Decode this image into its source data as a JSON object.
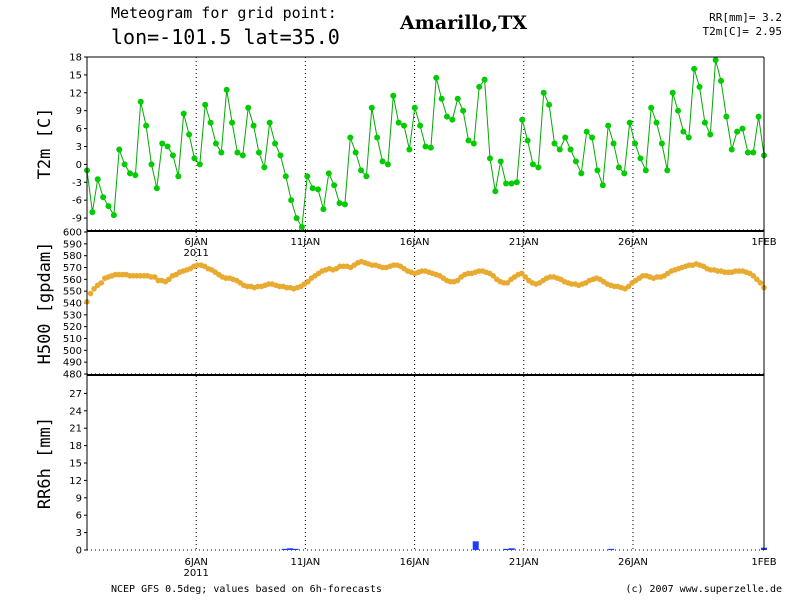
{
  "header": {
    "title": "Meteogram for grid point:",
    "coords": "lon=-101.5 lat=35.0",
    "location": "Amarillo,TX",
    "rr_summary": "RR[mm]= 3.2",
    "t2m_summary": "T2m[C]= 2.95"
  },
  "footer": {
    "source": "NCEP GFS 0.5deg; values based on 6h-forecasts",
    "copyright": "(c) 2007 www.superzelle.de"
  },
  "colors": {
    "t2m": "#00cc00",
    "t2m_line": "#00aa00",
    "h500": "#e8aa30",
    "rr": "#1f3dff",
    "grid": "#000000"
  },
  "chart_data": [
    {
      "type": "line",
      "ylabel": "T2m [C]",
      "ylim": [
        -11,
        18
      ],
      "yticks": [
        -9,
        -6,
        -3,
        0,
        3,
        6,
        9,
        12,
        15,
        18
      ],
      "x_start": "2011-01-01",
      "x_end": "2011-02-01",
      "step_hours": 6,
      "x_ticks": [
        {
          "label": "6JAN",
          "sub": "2011",
          "day": 6
        },
        {
          "label": "11JAN",
          "sub": "",
          "day": 11
        },
        {
          "label": "16JAN",
          "sub": "",
          "day": 16
        },
        {
          "label": "21JAN",
          "sub": "",
          "day": 21
        },
        {
          "label": "26JAN",
          "sub": "",
          "day": 26
        },
        {
          "label": "1FEB",
          "sub": "",
          "day": 32
        }
      ],
      "grid": "vertical dotted",
      "series": [
        {
          "values": [
            -1.0,
            -8.0,
            -2.5,
            -5.5,
            -7.0,
            -8.5,
            2.5,
            0.0,
            -1.5,
            -1.8,
            10.5,
            6.5,
            0.0,
            -4.0,
            3.5,
            3.0,
            1.5,
            -2.0,
            8.5,
            5.0,
            1.0,
            0.0,
            10.0,
            7.0,
            3.5,
            2.0,
            12.5,
            7.0,
            2.0,
            1.5,
            9.5,
            6.5,
            2.0,
            -0.5,
            7.0,
            3.5,
            1.5,
            -2.0,
            -6.0,
            -9.0,
            -10.5,
            -2.0,
            -4.0,
            -4.2,
            -7.5,
            -1.5,
            -3.5,
            -6.5,
            -6.7,
            4.5,
            2.0,
            -1.0,
            -2.0,
            9.5,
            4.5,
            0.5,
            0.0,
            11.5,
            7.0,
            6.5,
            2.5,
            9.5,
            6.5,
            3.0,
            2.8,
            14.5,
            11.0,
            8.0,
            7.5,
            11.0,
            9.0,
            4.0,
            3.5,
            13.0,
            14.2,
            1.0,
            -4.5,
            0.5,
            -3.2,
            -3.2,
            -3.0,
            7.5,
            4.0,
            0.0,
            -0.5,
            12.0,
            10.0,
            3.5,
            2.5,
            4.5,
            2.5,
            0.5,
            -1.5,
            5.5,
            4.5,
            -1.0,
            -3.5,
            6.5,
            3.5,
            -0.5,
            -1.5,
            7.0,
            3.5,
            1.0,
            -1.0,
            9.5,
            7.0,
            3.5,
            -1.0,
            12.0,
            9.0,
            5.5,
            4.5,
            16.0,
            13.0,
            7.0,
            5.0,
            17.5,
            14.0,
            8.0,
            2.5,
            5.5,
            6.0,
            2.0,
            2.0,
            8.0,
            1.5
          ]
        }
      ]
    },
    {
      "type": "line",
      "ylabel": "H500 [gpdam]",
      "ylim": [
        480,
        600
      ],
      "yticks": [
        480,
        490,
        500,
        510,
        520,
        530,
        540,
        550,
        560,
        570,
        580,
        590,
        600
      ],
      "grid": "vertical dotted",
      "series": [
        {
          "values": [
            541,
            548,
            552,
            555,
            557,
            561,
            562,
            563,
            564,
            564,
            564,
            564,
            563,
            563,
            563,
            563,
            563,
            563,
            562,
            562,
            559,
            559,
            558,
            560,
            563,
            564,
            566,
            567,
            568,
            569,
            571,
            572,
            572,
            571,
            569,
            568,
            566,
            564,
            562,
            561,
            561,
            560,
            559,
            557,
            555,
            554,
            554,
            553,
            554,
            554,
            555,
            556,
            556,
            555,
            554,
            554,
            553,
            553,
            552,
            553,
            554,
            556,
            558,
            561,
            563,
            565,
            567,
            568,
            569,
            568,
            569,
            571,
            571,
            571,
            570,
            572,
            574,
            575,
            574,
            573,
            572,
            572,
            571,
            570,
            570,
            571,
            572,
            572,
            571,
            569,
            567,
            566,
            565,
            566,
            567,
            567,
            566,
            565,
            564,
            563,
            561,
            559,
            558,
            558,
            559,
            562,
            564,
            565,
            565,
            566,
            567,
            567,
            566,
            565,
            563,
            560,
            558,
            557,
            557,
            560,
            562,
            564,
            565,
            562,
            559,
            557,
            556,
            557,
            559,
            561,
            562,
            562,
            561,
            560,
            558,
            557,
            556,
            556,
            555,
            556,
            557,
            559,
            560,
            561,
            560,
            558,
            556,
            555,
            554,
            554,
            553,
            552,
            554,
            557,
            559,
            561,
            563,
            563,
            562,
            561,
            562,
            562,
            563,
            565,
            567,
            568,
            569,
            570,
            571,
            572,
            572,
            573,
            572,
            571,
            569,
            568,
            568,
            567,
            567,
            566,
            566,
            566,
            567,
            567,
            567,
            566,
            565,
            563,
            560,
            557,
            553
          ]
        }
      ]
    },
    {
      "type": "bar",
      "ylabel": "RR6h [mm]",
      "ylim": [
        0,
        30
      ],
      "yticks": [
        0,
        3,
        6,
        9,
        12,
        15,
        18,
        21,
        24,
        27
      ],
      "grid": "vertical dotted",
      "bars": [
        {
          "day": 10.05,
          "value": 0.2
        },
        {
          "day": 10.3,
          "value": 0.3
        },
        {
          "day": 10.55,
          "value": 0.2
        },
        {
          "day": 18.8,
          "value": 1.5
        },
        {
          "day": 20.2,
          "value": 0.2
        },
        {
          "day": 20.45,
          "value": 0.3
        },
        {
          "day": 25.0,
          "value": 0.2
        },
        {
          "day": 32.0,
          "value": 0.4
        }
      ]
    }
  ]
}
